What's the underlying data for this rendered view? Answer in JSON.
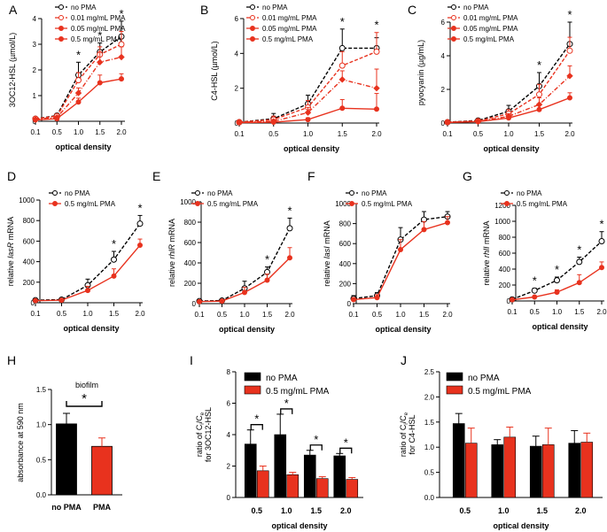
{
  "figure_label": "Multi-panel figure",
  "colors": {
    "black": "#000000",
    "red": "#e8321e",
    "white": "#ffffff"
  },
  "chart_data": [
    {
      "id": "A",
      "type": "line",
      "ylabel": "3OC12-HSL (µmol/L)",
      "xlabel": "optical density",
      "categories": [
        "0.1",
        "0.5",
        "1.0",
        "1.5",
        "2.0"
      ],
      "ylim": [
        0,
        4
      ],
      "yticks": [
        "0",
        "1",
        "2",
        "3",
        "4"
      ],
      "legend": [
        "no PMA",
        "0.01 mg/mL PMA",
        "0.05 mg/mL PMA",
        "0.5 mg/mL PMA"
      ],
      "series": [
        {
          "name": "no PMA",
          "values": [
            0.1,
            0.22,
            1.8,
            2.7,
            3.3
          ],
          "err": [
            0.05,
            0.08,
            0.5,
            0.35,
            0.6
          ],
          "style": "a"
        },
        {
          "name": "0.01 mg/mL PMA",
          "values": [
            0.1,
            0.2,
            1.6,
            2.6,
            3.0
          ],
          "err": [
            0.05,
            0.08,
            0.3,
            0.3,
            0.5
          ],
          "style": "b"
        },
        {
          "name": "0.05 mg/mL PMA",
          "values": [
            0.08,
            0.15,
            1.1,
            2.3,
            2.5
          ],
          "err": [
            0.04,
            0.05,
            0.2,
            0.4,
            0.4
          ],
          "style": "c"
        },
        {
          "name": "0.5 mg/mL PMA",
          "values": [
            0.05,
            0.1,
            0.75,
            1.5,
            1.65
          ],
          "err": [
            0.03,
            0.05,
            0.15,
            0.3,
            0.2
          ],
          "style": "d"
        }
      ],
      "star_idx": [
        2,
        3,
        4
      ]
    },
    {
      "id": "B",
      "type": "line",
      "ylabel": "C4-HSL (µmol/L)",
      "xlabel": "optical density",
      "categories": [
        "0.1",
        "0.5",
        "1.0",
        "1.5",
        "2.0"
      ],
      "ylim": [
        0,
        6
      ],
      "yticks": [
        "0",
        "2",
        "4",
        "6"
      ],
      "legend": [
        "no PMA",
        "0.01 mg/mL PMA",
        "0.05 mg/mL PMA",
        "0.5 mg/mL PMA"
      ],
      "series": [
        {
          "name": "no PMA",
          "values": [
            0.05,
            0.25,
            1.1,
            4.3,
            4.3
          ],
          "err": [
            0.05,
            0.3,
            0.5,
            1.1,
            0.6
          ],
          "style": "a"
        },
        {
          "name": "0.01 mg/mL PMA",
          "values": [
            0.05,
            0.2,
            0.9,
            3.3,
            4.1
          ],
          "err": [
            0.05,
            0.2,
            0.4,
            0.8,
            1.1
          ],
          "style": "b"
        },
        {
          "name": "0.05 mg/mL PMA",
          "values": [
            0.05,
            0.1,
            0.6,
            2.5,
            2.0
          ],
          "err": [
            0.03,
            0.1,
            0.3,
            0.5,
            1.1
          ],
          "style": "c"
        },
        {
          "name": "0.5 mg/mL PMA",
          "values": [
            0.02,
            0.05,
            0.2,
            0.85,
            0.8
          ],
          "err": [
            0.02,
            0.05,
            0.1,
            0.5,
            0.9
          ],
          "style": "d"
        }
      ],
      "star_idx": [
        3,
        4
      ]
    },
    {
      "id": "C",
      "type": "line",
      "ylabel": "pyocyanin (µg/mL)",
      "xlabel": "optical density",
      "categories": [
        "0.1",
        "0.5",
        "1.0",
        "1.5",
        "2.0"
      ],
      "ylim": [
        0,
        6
      ],
      "yticks": [
        "0",
        "2",
        "4",
        "6"
      ],
      "legend": [
        "no PMA",
        "0.01 mg/mL PMA",
        "0.05 mg/mL PMA",
        "0.5 mg/mL PMA"
      ],
      "series": [
        {
          "name": "no PMA",
          "values": [
            0.05,
            0.15,
            0.7,
            2.2,
            4.7
          ],
          "err": [
            0.03,
            0.05,
            0.35,
            0.8,
            1.3
          ],
          "style": "a"
        },
        {
          "name": "0.01 mg/mL PMA",
          "values": [
            0.05,
            0.12,
            0.55,
            1.7,
            4.3
          ],
          "err": [
            0.03,
            0.05,
            0.25,
            0.6,
            0.8
          ],
          "style": "b"
        },
        {
          "name": "0.05 mg/mL PMA",
          "values": [
            0.05,
            0.1,
            0.4,
            1.1,
            2.8
          ],
          "err": [
            0.03,
            0.04,
            0.15,
            0.4,
            0.6
          ],
          "style": "c"
        },
        {
          "name": "0.5 mg/mL PMA",
          "values": [
            0.03,
            0.08,
            0.3,
            0.8,
            1.5
          ],
          "err": [
            0.02,
            0.03,
            0.1,
            0.3,
            0.3
          ],
          "style": "d"
        }
      ],
      "star_idx": [
        3,
        4
      ]
    },
    {
      "id": "D",
      "type": "line",
      "ylabel": "relative lasR mRNA",
      "ylabel_parts": [
        "relative ",
        "lasR",
        " mRNA"
      ],
      "xlabel": "optical density",
      "categories": [
        "0.1",
        "0.5",
        "1.0",
        "1.5",
        "2.0"
      ],
      "ylim": [
        0,
        1000
      ],
      "yticks": [
        "0",
        "200",
        "400",
        "600",
        "800",
        "1000"
      ],
      "legend": [
        "no PMA",
        "0.5 mg/mL PMA"
      ],
      "series": [
        {
          "name": "no PMA",
          "values": [
            25,
            30,
            170,
            420,
            770
          ],
          "err": [
            10,
            15,
            60,
            80,
            80
          ],
          "style": "a"
        },
        {
          "name": "0.5 mg/mL PMA",
          "values": [
            20,
            25,
            120,
            260,
            560
          ],
          "err": [
            8,
            10,
            40,
            70,
            60
          ],
          "style": "d"
        }
      ],
      "star_idx": [
        3,
        4
      ]
    },
    {
      "id": "E",
      "type": "line",
      "ylabel": "relative rhlR mRNA",
      "ylabel_parts": [
        "relative ",
        "rhlR",
        " mRNA"
      ],
      "xlabel": "optical density",
      "categories": [
        "0.1",
        "0.5",
        "1.0",
        "1.5",
        "2.0"
      ],
      "ylim": [
        0,
        1000
      ],
      "yticks": [
        "0",
        "200",
        "400",
        "600",
        "800",
        "1000"
      ],
      "legend": [
        "no PMA",
        "0.5 mg/mL PMA"
      ],
      "series": [
        {
          "name": "no PMA",
          "values": [
            25,
            30,
            150,
            310,
            740
          ],
          "err": [
            10,
            15,
            70,
            50,
            100
          ],
          "style": "a"
        },
        {
          "name": "0.5 mg/mL PMA",
          "values": [
            20,
            25,
            110,
            230,
            450
          ],
          "err": [
            8,
            10,
            50,
            60,
            100
          ],
          "style": "d"
        }
      ],
      "star_idx": [
        3,
        4
      ]
    },
    {
      "id": "F",
      "type": "line",
      "ylabel": "relative lasI mRNA",
      "ylabel_parts": [
        "relative ",
        "lasI",
        " mRNA"
      ],
      "xlabel": "optical density",
      "categories": [
        "0.1",
        "0.5",
        "1.0",
        "1.5",
        "2.0"
      ],
      "ylim": [
        0,
        1000
      ],
      "yticks": [
        "0",
        "200",
        "400",
        "600",
        "800",
        "1000"
      ],
      "legend": [
        "no PMA",
        "0.5 mg/mL PMA"
      ],
      "series": [
        {
          "name": "no PMA",
          "values": [
            50,
            80,
            640,
            840,
            870
          ],
          "err": [
            30,
            30,
            120,
            80,
            50
          ],
          "style": "a"
        },
        {
          "name": "0.5 mg/mL PMA",
          "values": [
            40,
            60,
            540,
            740,
            810
          ],
          "err": [
            20,
            30,
            100,
            80,
            60
          ],
          "style": "d"
        }
      ],
      "star_idx": []
    },
    {
      "id": "G",
      "type": "line",
      "ylabel": "relative rhlI mRNA",
      "ylabel_parts": [
        "relative ",
        "rhlI",
        " mRNA"
      ],
      "xlabel": "optical density",
      "categories": [
        "0.1",
        "0.5",
        "1.0",
        "1.5",
        "2.0"
      ],
      "ylim": [
        0,
        1200
      ],
      "yticks": [
        "0",
        "200",
        "400",
        "600",
        "800",
        "1000",
        "1200"
      ],
      "legend": [
        "no PMA",
        "0.5 mg/mL PMA"
      ],
      "series": [
        {
          "name": "no PMA",
          "values": [
            20,
            130,
            260,
            490,
            750
          ],
          "err": [
            10,
            30,
            40,
            60,
            120
          ],
          "style": "a"
        },
        {
          "name": "0.5 mg/mL PMA",
          "values": [
            15,
            50,
            110,
            230,
            420
          ],
          "err": [
            8,
            15,
            30,
            100,
            70
          ],
          "style": "d"
        }
      ],
      "star_idx": [
        1,
        2,
        3,
        4
      ]
    },
    {
      "id": "H",
      "type": "bar",
      "title": "biofilm",
      "ylabel": "absorbance at 590 nm",
      "categories": [
        "no PMA",
        "PMA"
      ],
      "values": [
        1.01,
        0.69
      ],
      "err": [
        0.15,
        0.12
      ],
      "ylim": [
        0,
        1.5
      ],
      "yticks": [
        "0.0",
        "0.5",
        "1.0",
        "1.5"
      ],
      "star": "*"
    },
    {
      "id": "I",
      "type": "bar",
      "ylabel": "ratio of Ci/Ce for 3OC12-HSL",
      "xlabel": "optical density",
      "ylabel_l1": [
        "ratio of C",
        "i",
        "/C",
        "e"
      ],
      "ylabel_l2": "for 3OC12-HSL",
      "categories": [
        "0.5",
        "1.0",
        "1.5",
        "2.0"
      ],
      "ylim": [
        0,
        8
      ],
      "yticks": [
        "0",
        "2",
        "4",
        "6",
        "8"
      ],
      "legend": [
        "no PMA",
        "0.5 mg/mL PMA"
      ],
      "series": [
        {
          "name": "no PMA",
          "values": [
            3.4,
            4.0,
            2.7,
            2.65
          ],
          "err": [
            0.9,
            1.3,
            0.3,
            0.15
          ]
        },
        {
          "name": "0.5 mg/mL PMA",
          "values": [
            1.7,
            1.45,
            1.2,
            1.15
          ],
          "err": [
            0.3,
            0.15,
            0.12,
            0.12
          ]
        }
      ],
      "star": "*"
    },
    {
      "id": "J",
      "type": "bar",
      "ylabel": "ratio of Ci/Ce for C4-HSL",
      "xlabel": "optical density",
      "ylabel_l1": [
        "ratio of C",
        "i",
        "/C",
        "e"
      ],
      "ylabel_l2": "for C4-HSL",
      "categories": [
        "0.5",
        "1.0",
        "1.5",
        "2.0"
      ],
      "ylim": [
        0,
        2.5
      ],
      "yticks": [
        "0.0",
        "0.5",
        "1.0",
        "1.5",
        "2.0",
        "2.5"
      ],
      "legend": [
        "no PMA",
        "0.5 mg/mL PMA"
      ],
      "series": [
        {
          "name": "no PMA",
          "values": [
            1.47,
            1.05,
            1.02,
            1.08
          ],
          "err": [
            0.2,
            0.1,
            0.2,
            0.25
          ]
        },
        {
          "name": "0.5 mg/mL PMA",
          "values": [
            1.08,
            1.2,
            1.05,
            1.1
          ],
          "err": [
            0.3,
            0.2,
            0.33,
            0.18
          ]
        }
      ]
    }
  ]
}
